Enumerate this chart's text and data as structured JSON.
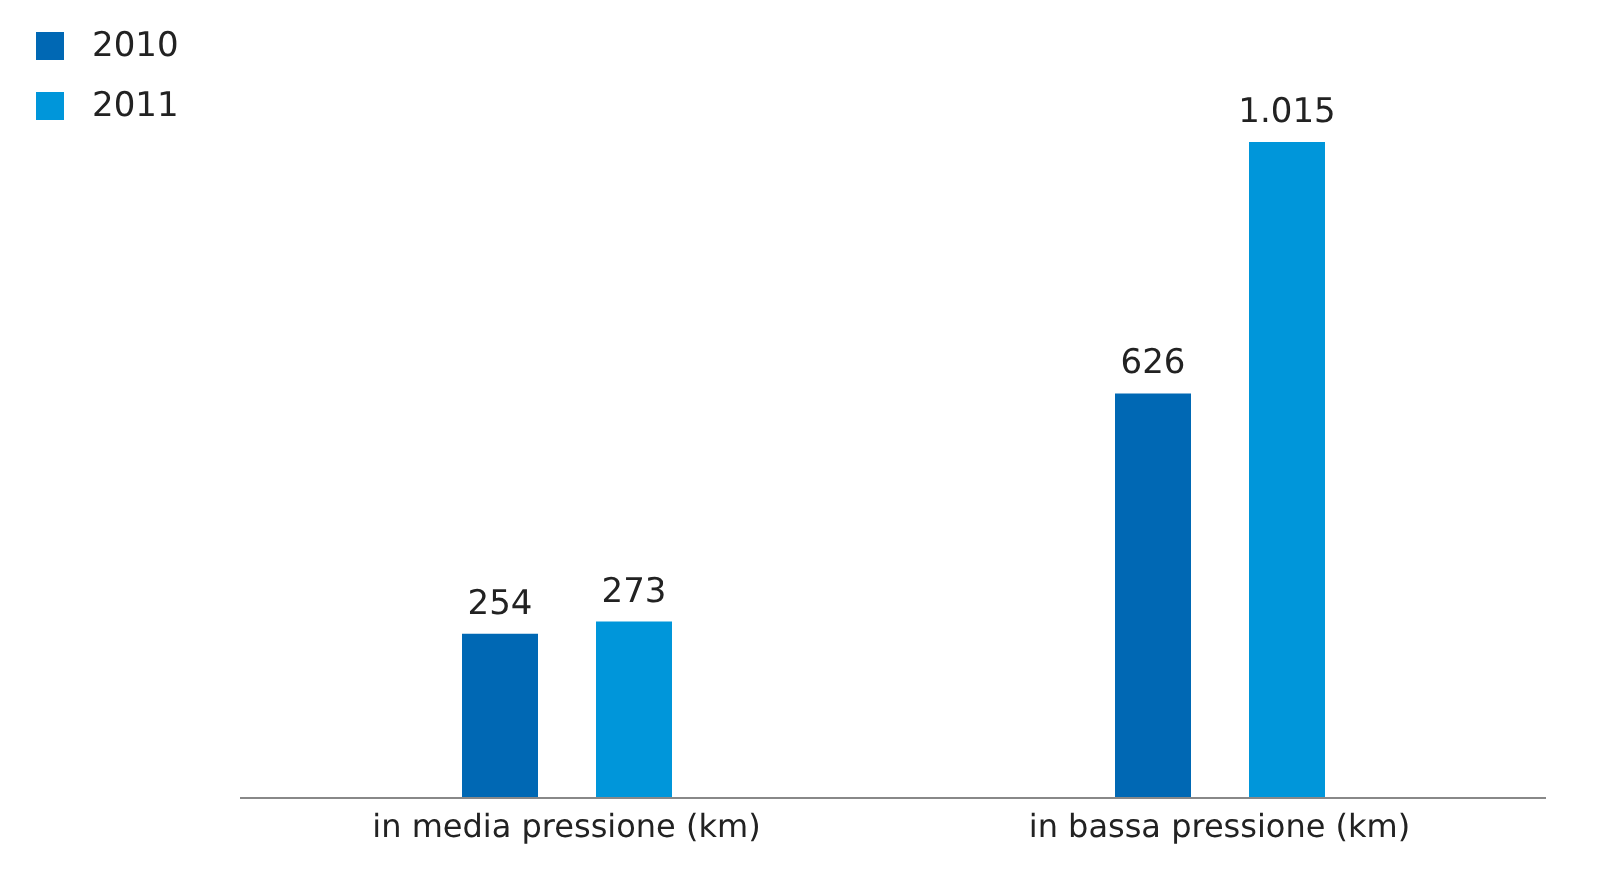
{
  "chart_data": {
    "type": "bar",
    "categories": [
      "in media pressione (km)",
      "in bassa pressione (km)"
    ],
    "series": [
      {
        "name": "2010",
        "color": "#0068b4",
        "values": [
          254,
          626
        ],
        "value_labels": [
          "254",
          "626"
        ]
      },
      {
        "name": "2011",
        "color": "#0096da",
        "values": [
          273,
          1015
        ],
        "value_labels": [
          "273",
          "1.015"
        ]
      }
    ],
    "legend": "top left",
    "grid": false
  }
}
